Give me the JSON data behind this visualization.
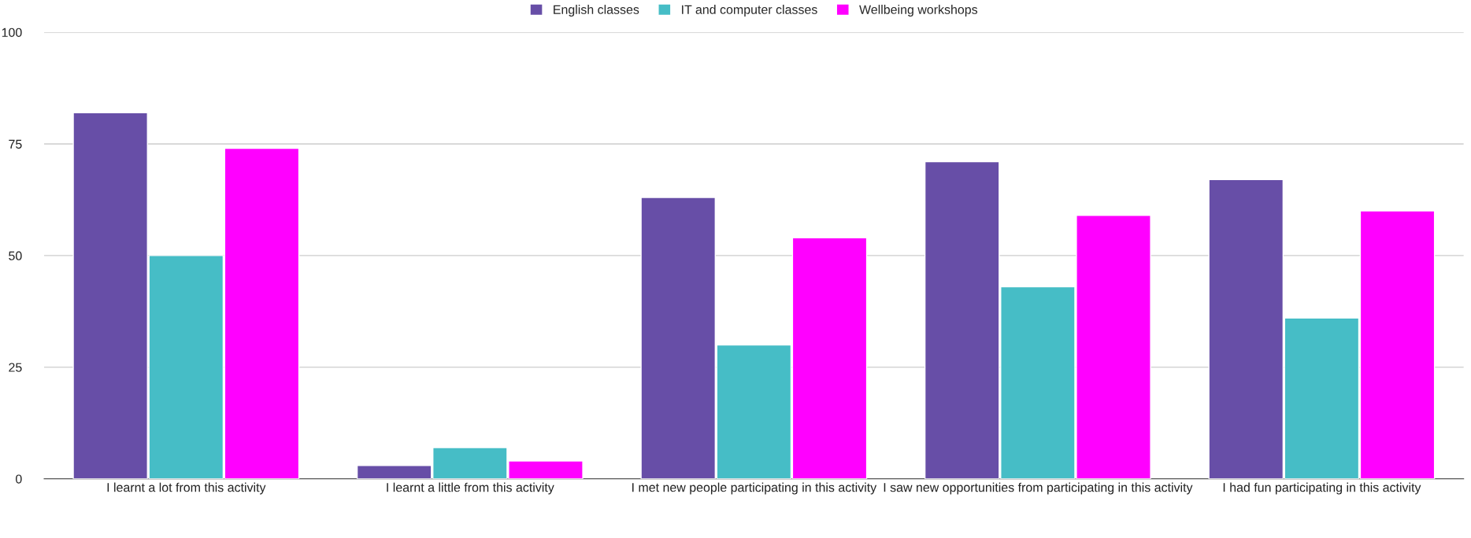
{
  "chart_data": {
    "type": "bar",
    "categories": [
      "I learnt a lot from this activity",
      "I learnt a little from this activity",
      "I met new people participating in this activity",
      "I saw new opportunities from participating in this activity",
      "I had fun participating in this activity"
    ],
    "series": [
      {
        "name": "English classes",
        "color": "#674ea7",
        "values": [
          82,
          3,
          63,
          71,
          67
        ]
      },
      {
        "name": "IT and computer classes",
        "color": "#46bdc6",
        "values": [
          50,
          7,
          30,
          43,
          36
        ]
      },
      {
        "name": "Wellbeing workshops",
        "color": "#ff00ff",
        "values": [
          74,
          4,
          54,
          59,
          60
        ]
      }
    ],
    "ylim": [
      0,
      100
    ],
    "yticks": [
      0,
      25,
      50,
      75,
      100
    ],
    "grid": "y",
    "legend": "top"
  }
}
